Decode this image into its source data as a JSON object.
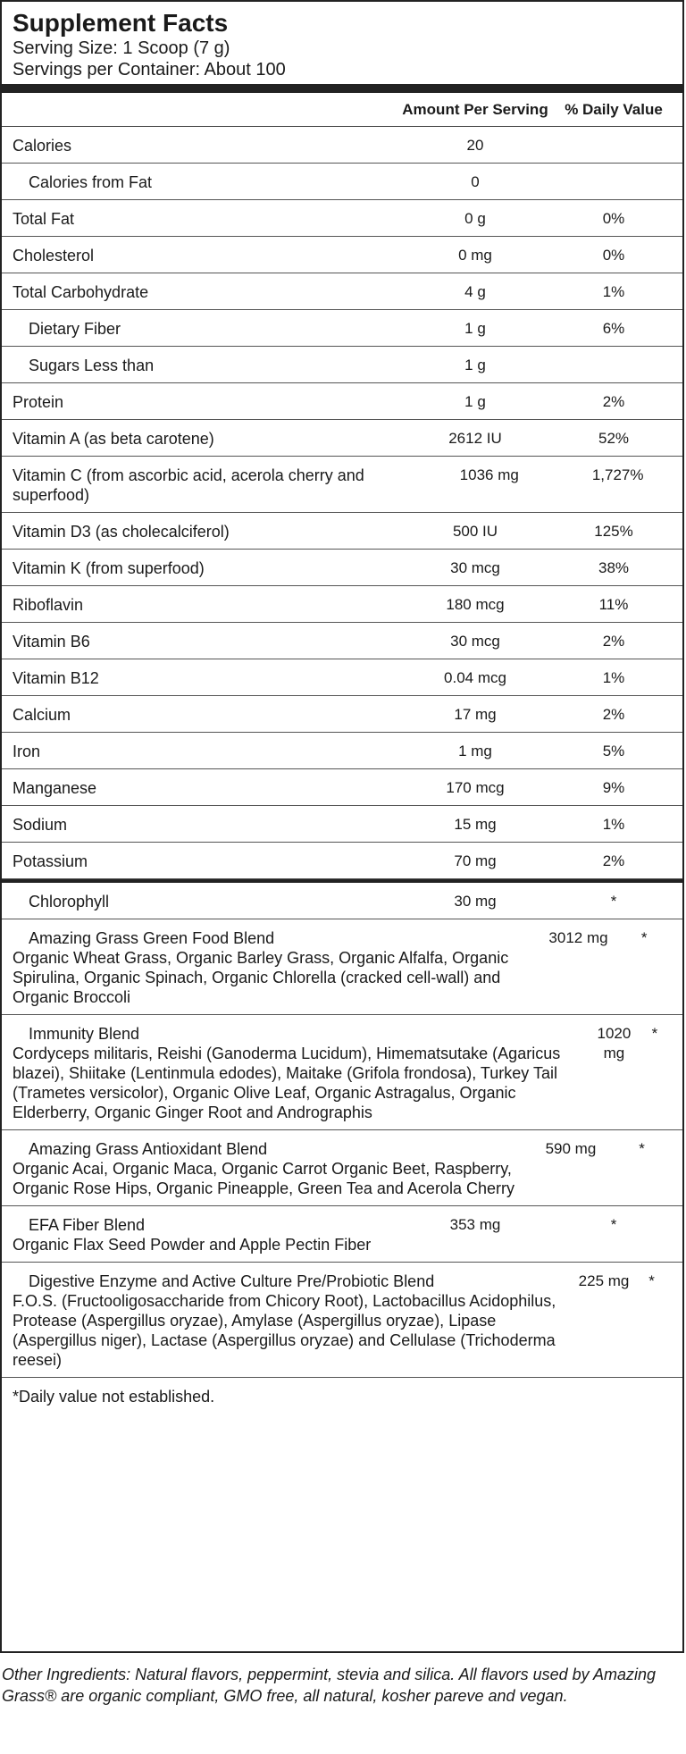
{
  "title": "Supplement Facts",
  "serving_size": "Serving Size: 1 Scoop (7 g)",
  "servings_per_container": "Servings per Container: About 100",
  "header": {
    "amount": "Amount Per Serving",
    "dv": "% Daily Value"
  },
  "nutrients": [
    {
      "name": "Calories",
      "amount": "20",
      "dv": ""
    },
    {
      "name": "Calories from Fat",
      "amount": "0",
      "dv": "",
      "indent": true
    },
    {
      "name": "Total Fat",
      "amount": "0 g",
      "dv": "0%"
    },
    {
      "name": "Cholesterol",
      "amount": "0 mg",
      "dv": "0%"
    },
    {
      "name": "Total Carbohydrate",
      "amount": "4 g",
      "dv": "1%"
    },
    {
      "name": "Dietary Fiber",
      "amount": "1 g",
      "dv": "6%",
      "indent": true
    },
    {
      "name": "Sugars Less than",
      "amount": "1 g",
      "dv": "",
      "indent": true
    },
    {
      "name": "Protein",
      "amount": "1 g",
      "dv": "2%"
    },
    {
      "name": "Vitamin A (as beta carotene)",
      "amount": "2612 IU",
      "dv": "52%"
    },
    {
      "name": "Vitamin C (from ascorbic acid, acerola cherry and superfood)",
      "amount": "1036 mg",
      "dv": "1,727%"
    },
    {
      "name": "Vitamin D3 (as cholecalciferol)",
      "amount": "500 IU",
      "dv": "125%"
    },
    {
      "name": "Vitamin K (from superfood)",
      "amount": "30 mcg",
      "dv": "38%"
    },
    {
      "name": "Riboflavin",
      "amount": "180 mcg",
      "dv": "11%"
    },
    {
      "name": "Vitamin B6",
      "amount": "30 mcg",
      "dv": "2%"
    },
    {
      "name": "Vitamin B12",
      "amount": "0.04 mcg",
      "dv": "1%"
    },
    {
      "name": "Calcium",
      "amount": "17 mg",
      "dv": "2%"
    },
    {
      "name": "Iron",
      "amount": "1 mg",
      "dv": "5%"
    },
    {
      "name": "Manganese",
      "amount": "170 mcg",
      "dv": "9%"
    },
    {
      "name": "Sodium",
      "amount": "15 mg",
      "dv": "1%"
    },
    {
      "name": "Potassium",
      "amount": "70 mg",
      "dv": "2%"
    }
  ],
  "blends": [
    {
      "name": "Chlorophyll",
      "ingredients": "",
      "amount": "30 mg",
      "dv": "*"
    },
    {
      "name": "Amazing Grass Green Food Blend",
      "ingredients": "Organic Wheat Grass, Organic Barley Grass, Organic Alfalfa, Organic Spirulina, Organic Spinach, Organic Chlorella (cracked cell-wall) and Organic Broccoli",
      "amount": "3012 mg",
      "dv": "*"
    },
    {
      "name": "Immunity Blend",
      "ingredients": "Cordyceps militaris, Reishi (Ganoderma Lucidum), Himematsutake (Agaricus blazei), Shiitake (Lentinmula edodes), Maitake (Grifola frondosa), Turkey Tail (Trametes versicolor), Organic Olive Leaf, Organic Astragalus, Organic Elderberry, Organic Ginger Root and Andrographis",
      "amount": "1020 mg",
      "dv": "*"
    },
    {
      "name": "Amazing Grass Antioxidant Blend",
      "ingredients": "Organic Acai, Organic Maca, Organic Carrot Organic Beet, Raspberry, Organic Rose Hips, Organic Pineapple, Green Tea and Acerola Cherry",
      "amount": "590 mg",
      "dv": "*"
    },
    {
      "name": "EFA Fiber Blend",
      "ingredients": "Organic Flax Seed Powder and Apple Pectin Fiber",
      "amount": "353 mg",
      "dv": "*"
    },
    {
      "name": "Digestive Enzyme and Active Culture Pre/Probiotic Blend",
      "ingredients": "F.O.S. (Fructooligosaccharide from Chicory Root), Lactobacillus Acidophilus, Protease (Aspergillus oryzae), Amylase (Aspergillus oryzae), Lipase (Aspergillus niger), Lactase (Aspergillus oryzae) and Cellulase (Trichoderma reesei)",
      "amount": "225 mg",
      "dv": "*"
    }
  ],
  "footnote": "*Daily value not established.",
  "other_ingredients": "Other Ingredients: Natural flavors, peppermint, stevia and silica. All flavors used by Amazing Grass® are organic compliant, GMO free, all natural, kosher pareve and vegan."
}
